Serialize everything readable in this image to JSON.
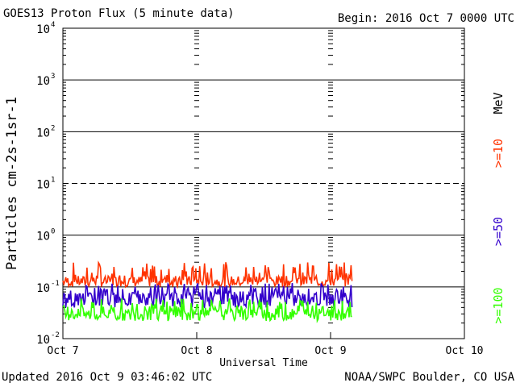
{
  "header": {
    "title": "GOES13 Proton Flux (5 minute data)",
    "begin": "Begin: 2016 Oct 7 0000 UTC"
  },
  "footer": {
    "updated": "Updated 2016 Oct  9 03:46:02 UTC",
    "source": "NOAA/SWPC Boulder, CO USA"
  },
  "colors": {
    "ge10": "#ff3300",
    "ge50": "#3300cc",
    "ge100": "#33ff00",
    "grid": "#000000"
  },
  "chart_data": {
    "type": "line",
    "title": "GOES13 Proton Flux (5 minute data)",
    "xlabel": "Universal Time",
    "ylabel": "Particles cm-2s-1sr-1",
    "yscale": "log",
    "ylim_exp": [
      -2,
      4
    ],
    "ytick_exponents": [
      -2,
      -1,
      0,
      1,
      2,
      3,
      4
    ],
    "dashed_gridline_exp": 1,
    "x_range_days": [
      0,
      3
    ],
    "x_ticks": [
      {
        "day": 0,
        "label": "Oct 7"
      },
      {
        "day": 1,
        "label": "Oct 8"
      },
      {
        "day": 2,
        "label": "Oct 9"
      },
      {
        "day": 3,
        "label": "Oct 10"
      }
    ],
    "data_end_day": 2.16,
    "energy_unit": "MeV",
    "series": [
      {
        "name": ">=10",
        "label": ">=10",
        "base": 0.15,
        "low": 0.1,
        "high": 0.3,
        "color": "#ff3300"
      },
      {
        "name": ">=50",
        "label": ">=50",
        "base": 0.07,
        "low": 0.04,
        "high": 0.12,
        "color": "#3300cc"
      },
      {
        "name": ">=100",
        "label": ">=100",
        "base": 0.035,
        "low": 0.022,
        "high": 0.06,
        "color": "#33ff00"
      }
    ]
  }
}
